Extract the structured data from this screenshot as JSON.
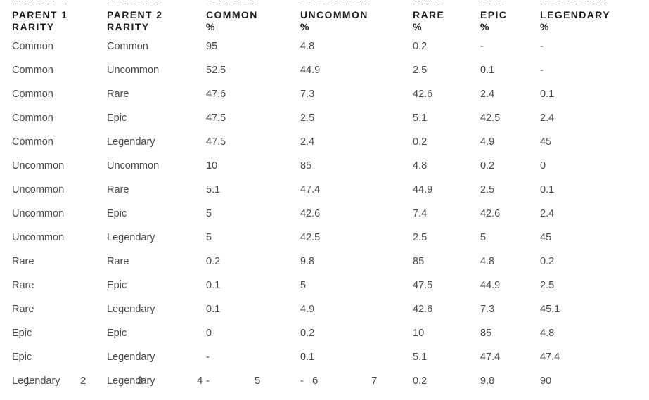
{
  "colors": {
    "background": "#ffffff",
    "header_text": "#1c1c1c",
    "body_text": "#4a4a4a"
  },
  "table": {
    "headers": [
      {
        "title": "PARENT 1",
        "sub": "RARITY"
      },
      {
        "title": "PARENT 2",
        "sub": "RARITY"
      },
      {
        "title": "COMMON",
        "sub": "%"
      },
      {
        "title": "UNCOMMON",
        "sub": "%"
      },
      {
        "title": "RARE",
        "sub": "%"
      },
      {
        "title": "EPIC",
        "sub": "%"
      },
      {
        "title": "LEGENDARY",
        "sub": "%"
      }
    ],
    "rows": [
      [
        "Common",
        "Common",
        "95",
        "4.8",
        "0.2",
        "-",
        "-"
      ],
      [
        "Common",
        "Uncommon",
        "52.5",
        "44.9",
        "2.5",
        "0.1",
        "-"
      ],
      [
        "Common",
        "Rare",
        "47.6",
        "7.3",
        "42.6",
        "2.4",
        "0.1"
      ],
      [
        "Common",
        "Epic",
        "47.5",
        "2.5",
        "5.1",
        "42.5",
        "2.4"
      ],
      [
        "Common",
        "Legendary",
        "47.5",
        "2.4",
        "0.2",
        "4.9",
        "45"
      ],
      [
        "Uncommon",
        "Uncommon",
        "10",
        "85",
        "4.8",
        "0.2",
        "0"
      ],
      [
        "Uncommon",
        "Rare",
        "5.1",
        "47.4",
        "44.9",
        "2.5",
        "0.1"
      ],
      [
        "Uncommon",
        "Epic",
        "5",
        "42.6",
        "7.4",
        "42.6",
        "2.4"
      ],
      [
        "Uncommon",
        "Legendary",
        "5",
        "42.5",
        "2.5",
        "5",
        "45"
      ],
      [
        "Rare",
        "Rare",
        "0.2",
        "9.8",
        "85",
        "4.8",
        "0.2"
      ],
      [
        "Rare",
        "Epic",
        "0.1",
        "5",
        "47.5",
        "44.9",
        "2.5"
      ],
      [
        "Rare",
        "Legendary",
        "0.1",
        "4.9",
        "42.6",
        "7.3",
        "45.1"
      ],
      [
        "Epic",
        "Epic",
        "0",
        "0.2",
        "10",
        "85",
        "4.8"
      ],
      [
        "Epic",
        "Legendary",
        "-",
        "0.1",
        "5.1",
        "47.4",
        "47.4"
      ],
      [
        "Legendary",
        "Legendary",
        "-",
        "-",
        "0.2",
        "9.8",
        "90"
      ]
    ]
  },
  "overlay_markers": {
    "labels": [
      "1",
      "2",
      "3",
      "4",
      "5",
      "6",
      "7"
    ]
  }
}
